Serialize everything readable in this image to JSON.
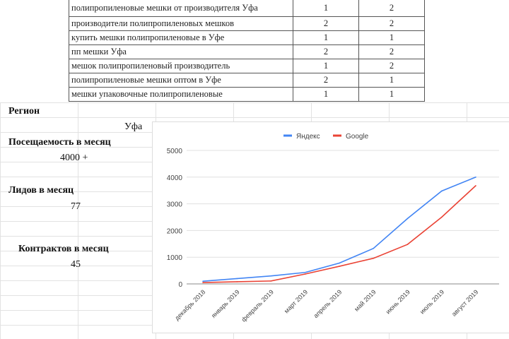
{
  "table": {
    "rows": [
      [
        "полипропиленовые мешки от производителя Уфа",
        "1",
        "2"
      ],
      [
        "производители полипропиленовых мешков",
        "2",
        "2"
      ],
      [
        "купить мешки полипропиленовые в Уфе",
        "1",
        "1"
      ],
      [
        "пп мешки Уфа",
        "2",
        "2"
      ],
      [
        "мешок полипропиленовый производитель",
        "1",
        "2"
      ],
      [
        "полипропиленовые мешки оптом в Уфе",
        "2",
        "1"
      ],
      [
        "мешки упаковочные полипропиленовые",
        "1",
        "1"
      ]
    ]
  },
  "left": {
    "region_label": "Регион",
    "region_value": "Уфа",
    "traffic_label": "Посещаемость в месяц",
    "traffic_value": "4000 +",
    "leads_label": "Лидов в месяц",
    "leads_value": "77",
    "contracts_label": "Контрактов в месяц",
    "contracts_value": "45"
  },
  "chart_data": {
    "type": "line",
    "categories": [
      "декабрь 2018",
      "январь 2019",
      "февраль 2019",
      "март 2019",
      "апрель 2019",
      "май 2019",
      "июнь 2019",
      "июль 2019",
      "август 2019"
    ],
    "series": [
      {
        "name": "Яндекс",
        "color": "#4285f4",
        "values": [
          100,
          200,
          300,
          430,
          780,
          1330,
          2450,
          3480,
          4000
        ]
      },
      {
        "name": "Google",
        "color": "#ea4335",
        "values": [
          50,
          80,
          110,
          370,
          660,
          960,
          1480,
          2500,
          3680
        ]
      }
    ],
    "ylim": [
      0,
      5000
    ],
    "yticks": [
      "0",
      "1000",
      "2000",
      "3000",
      "4000",
      "5000"
    ],
    "grid": true,
    "legend": "top"
  }
}
